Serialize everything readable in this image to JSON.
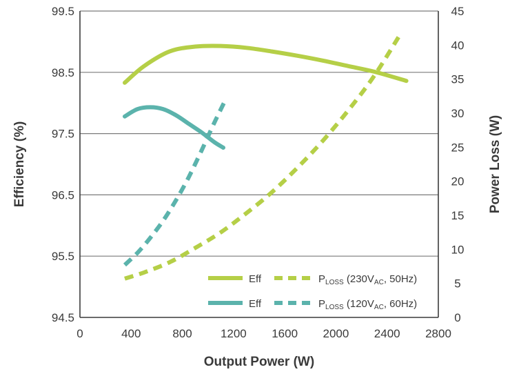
{
  "chart_data": {
    "type": "line",
    "xlabel": "Output Power (W)",
    "ylabel_left": "Efficiency (%)",
    "ylabel_right": "Power Loss (W)",
    "x_ticks": [
      "0",
      "400",
      "800",
      "1200",
      "1600",
      "2000",
      "2400",
      "2800"
    ],
    "y_left_ticks": [
      "94.5",
      "95.5",
      "96.5",
      "97.5",
      "98.5",
      "99.5"
    ],
    "y_right_ticks": [
      "0",
      "5",
      "10",
      "15",
      "20",
      "25",
      "30",
      "35",
      "40",
      "45"
    ],
    "xlim": [
      0,
      2800
    ],
    "ylim_left": [
      94.5,
      99.5
    ],
    "ylim_right": [
      0,
      45
    ],
    "grid": "horizontal at left-axis ticks",
    "colors": {
      "green": "#b5cf47",
      "teal": "#5bb3ac",
      "axis": "#3a3a3a",
      "grid": "#7a7a7a"
    },
    "series": [
      {
        "name": "Eff",
        "legend_label": "Eff",
        "axis": "left",
        "style": "solid",
        "color": "#b5cf47",
        "x": [
          350,
          500,
          700,
          900,
          1100,
          1300,
          1500,
          1700,
          1900,
          2100,
          2300,
          2550
        ],
        "y": [
          98.33,
          98.6,
          98.84,
          98.92,
          98.93,
          98.9,
          98.84,
          98.77,
          98.69,
          98.6,
          98.51,
          98.36
        ]
      },
      {
        "name": "Eff",
        "legend_label": "Eff",
        "axis": "left",
        "style": "solid",
        "color": "#5bb3ac",
        "x": [
          350,
          450,
          550,
          650,
          750,
          850,
          950,
          1050,
          1120
        ],
        "y": [
          97.78,
          97.9,
          97.93,
          97.9,
          97.8,
          97.66,
          97.52,
          97.36,
          97.27
        ]
      },
      {
        "name": "PLOSS (230VAC, 50Hz)",
        "legend_label": [
          "P",
          "LOSS",
          " (230V",
          "AC",
          ", 50Hz)"
        ],
        "axis": "right",
        "style": "dashed",
        "color": "#b5cf47",
        "x": [
          350,
          500,
          700,
          900,
          1100,
          1300,
          1500,
          1700,
          1900,
          2100,
          2300,
          2500
        ],
        "y": [
          5.7,
          6.6,
          8.1,
          10.2,
          12.5,
          15.3,
          18.4,
          22.0,
          26.0,
          30.5,
          35.5,
          41.5
        ]
      },
      {
        "name": "PLOSS (120VAC, 60Hz)",
        "legend_label": [
          "P",
          "LOSS",
          " (120V",
          "AC",
          ", 60Hz)"
        ],
        "axis": "right",
        "style": "dashed",
        "color": "#5bb3ac",
        "x": [
          350,
          450,
          550,
          650,
          750,
          850,
          950,
          1050,
          1130
        ],
        "y": [
          7.7,
          9.5,
          11.7,
          14.2,
          17.2,
          20.6,
          24.5,
          28.6,
          31.7
        ]
      }
    ]
  }
}
